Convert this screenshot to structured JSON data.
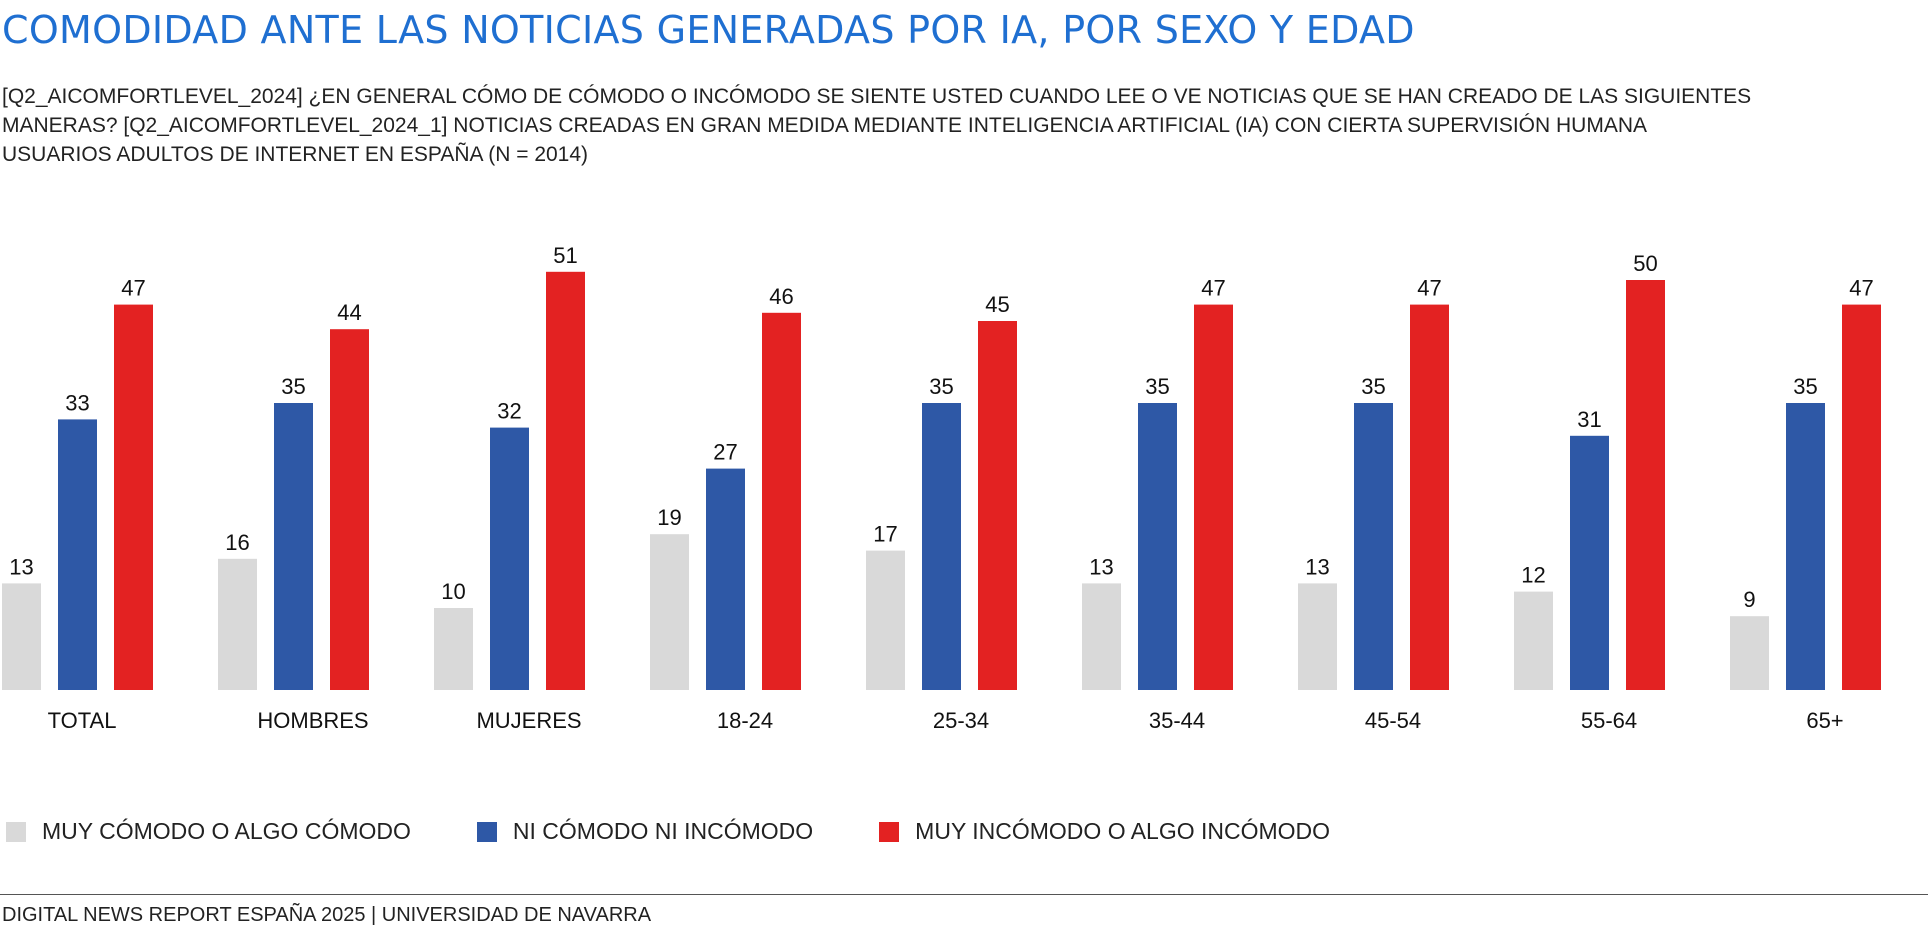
{
  "title": "COMODIDAD ANTE LAS NOTICIAS GENERADAS POR IA, POR SEXO Y EDAD",
  "subtitle_lines": [
    "[Q2_AICOMFORTLEVEL_2024] ¿EN GENERAL CÓMO DE CÓMODO O INCÓMODO SE SIENTE USTED CUANDO LEE O VE NOTICIAS QUE SE HAN CREADO DE LAS SIGUIENTES",
    "MANERAS? [Q2_AICOMFORTLEVEL_2024_1]   NOTICIAS CREADAS EN GRAN MEDIDA MEDIANTE INTELIGENCIA ARTIFICIAL (IA) CON CIERTA SUPERVISIÓN HUMANA",
    "USUARIOS ADULTOS DE INTERNET EN ESPAÑA (N = 2014)"
  ],
  "footer": "DIGITAL NEWS REPORT ESPAÑA 2025 | UNIVERSIDAD DE NAVARRA",
  "colors": {
    "title": "#1f6fd1",
    "comodo": "#d9d9d9",
    "neutral": "#2e58a6",
    "incomodo": "#e32222"
  },
  "chart_data": {
    "type": "bar",
    "title": "COMODIDAD ANTE LAS NOTICIAS GENERADAS POR IA, POR SEXO Y EDAD",
    "categories": [
      "TOTAL",
      "HOMBRES",
      "MUJERES",
      "18-24",
      "25-34",
      "35-44",
      "45-54",
      "55-64",
      "65+"
    ],
    "series": [
      {
        "name": "MUY CÓMODO O ALGO CÓMODO",
        "color": "#d9d9d9",
        "values": [
          13,
          16,
          10,
          19,
          17,
          13,
          13,
          12,
          9
        ]
      },
      {
        "name": "NI CÓMODO NI INCÓMODO",
        "color": "#2e58a6",
        "values": [
          33,
          35,
          32,
          27,
          35,
          35,
          35,
          31,
          35
        ]
      },
      {
        "name": "MUY INCÓMODO O ALGO INCÓMODO",
        "color": "#e32222",
        "values": [
          47,
          44,
          51,
          46,
          45,
          47,
          47,
          50,
          47
        ]
      }
    ],
    "data_labels": true,
    "grid": false,
    "legend_position": "bottom-left",
    "ylim": [
      0,
      55
    ],
    "xlabel": "",
    "ylabel": ""
  }
}
